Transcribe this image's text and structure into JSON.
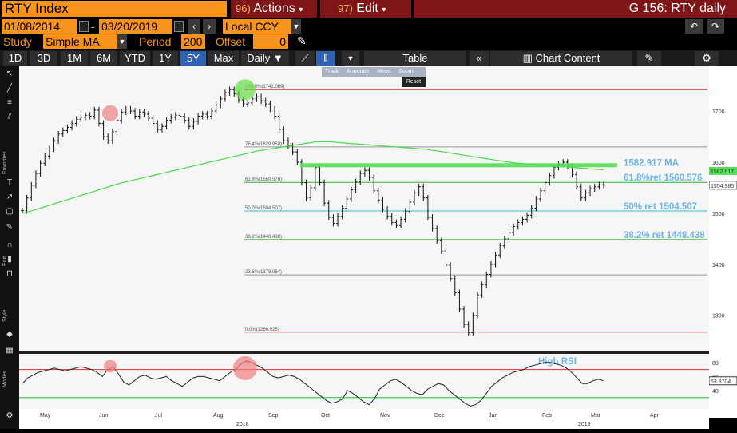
{
  "header": {
    "security": "RTY Index",
    "actions": {
      "num": "96)",
      "label": "Actions"
    },
    "edit": {
      "num": "97)",
      "label": "Edit"
    },
    "window_title": "G 156: RTY daily"
  },
  "controls": {
    "start_date": "01/08/2014",
    "dash": "-",
    "end_date": "03/20/2019",
    "currency": "Local CCY",
    "study_label": "Study",
    "study_value": "Simple MA",
    "period_label": "Period",
    "period_value": "200",
    "offset_label": "Offset",
    "offset_value": "0"
  },
  "tabs": [
    "1D",
    "3D",
    "1M",
    "6M",
    "YTD",
    "1Y",
    "5Y",
    "Max"
  ],
  "active_tab": "5Y",
  "periodicity": "Daily",
  "table_label": "Table",
  "chart_content_label": "Chart Content",
  "overlay_toolbar": {
    "items": [
      "Track",
      "Annotate",
      "News",
      "Zoom"
    ],
    "reset": "Reset"
  },
  "side_labels": {
    "favorites": "Favorites",
    "edit": "Edit",
    "style": "Style",
    "modes": "Modes"
  },
  "chart_data": {
    "type": "line",
    "title": "RTY daily",
    "price_axis": {
      "ylim": [
        1240,
        1780
      ],
      "ticks": [
        1300,
        1400,
        1500,
        1600,
        1700
      ]
    },
    "rsi_axis": {
      "ylim": [
        15,
        90
      ],
      "ticks": [
        40,
        60,
        80
      ]
    },
    "x_tick_labels": [
      "May",
      "Jun",
      "Jul",
      "Aug",
      "Sep",
      "Oct",
      "Nov",
      "Dec",
      "Jan",
      "Feb",
      "Mar",
      "Apr"
    ],
    "x_year_labels": [
      "2018",
      "2019"
    ],
    "fib_levels": [
      {
        "label": "100.0%(1742.089)",
        "value": 1742.089,
        "color": "#e03030"
      },
      {
        "label": "76.4%(1629.950)",
        "value": 1629.95,
        "color": "#999999"
      },
      {
        "label": "61.8%(1560.576)",
        "value": 1560.576,
        "color": "#22bb22"
      },
      {
        "label": "50.0%(1504.507)",
        "value": 1504.507,
        "color": "#33bbdd"
      },
      {
        "label": "38.2%(1448.438)",
        "value": 1448.438,
        "color": "#22bb22"
      },
      {
        "label": "23.6%(1379.064)",
        "value": 1379.064,
        "color": "#999999"
      },
      {
        "label": "0.0%(1266.925)",
        "value": 1266.925,
        "color": "#e03030"
      }
    ],
    "annotations": [
      "1582.917  MA",
      "61.8%ret 1560.576",
      "50% ret 1504.507",
      "38.2% ret 1448.438",
      "High RSI"
    ],
    "last_price": "1554.985",
    "ma_value": "1582.917",
    "rsi_last": "53.8704",
    "rsi_bands": {
      "upper": 70,
      "lower": 30
    },
    "series": [
      {
        "name": "RTY",
        "values": [
          1505,
          1530,
          1555,
          1578,
          1598,
          1612,
          1626,
          1642,
          1655,
          1662,
          1668,
          1676,
          1684,
          1688,
          1692,
          1690,
          1702,
          1676,
          1650,
          1642,
          1660,
          1682,
          1698,
          1704,
          1700,
          1690,
          1698,
          1694,
          1686,
          1676,
          1664,
          1670,
          1682,
          1688,
          1692,
          1690,
          1682,
          1670,
          1680,
          1690,
          1694,
          1690,
          1700,
          1712,
          1724,
          1736,
          1742,
          1734,
          1722,
          1714,
          1716,
          1724,
          1728,
          1720,
          1714,
          1704,
          1690,
          1664,
          1642,
          1632,
          1620,
          1600,
          1560,
          1530,
          1550,
          1590,
          1560,
          1520,
          1492,
          1480,
          1494,
          1510,
          1528,
          1546,
          1562,
          1578,
          1584,
          1570,
          1544,
          1526,
          1508,
          1494,
          1482,
          1476,
          1488,
          1504,
          1522,
          1540,
          1552,
          1530,
          1492,
          1470,
          1446,
          1426,
          1398,
          1372,
          1344,
          1312,
          1282,
          1266,
          1300,
          1340,
          1360,
          1380,
          1400,
          1418,
          1436,
          1450,
          1462,
          1474,
          1482,
          1488,
          1496,
          1510,
          1528,
          1544,
          1560,
          1574,
          1590,
          1596,
          1600,
          1592,
          1576,
          1552,
          1530,
          1540,
          1548,
          1552,
          1556,
          1555
        ]
      },
      {
        "name": "MA",
        "values": [
          1500,
          1503,
          1507,
          1511,
          1515,
          1519,
          1523,
          1527,
          1531,
          1535,
          1539,
          1543,
          1547,
          1551,
          1555,
          1559,
          1562,
          1565,
          1568,
          1571,
          1574,
          1577,
          1580,
          1583,
          1586,
          1589,
          1592,
          1595,
          1598,
          1601,
          1604,
          1607,
          1610,
          1613,
          1616,
          1619,
          1622,
          1624,
          1626,
          1628,
          1630,
          1632,
          1634,
          1636,
          1638,
          1640,
          1640,
          1640,
          1639,
          1638,
          1637,
          1636,
          1635,
          1634,
          1633,
          1632,
          1631,
          1630,
          1629,
          1628,
          1627,
          1626,
          1625,
          1623,
          1621,
          1619,
          1617,
          1615,
          1613,
          1611,
          1609,
          1607,
          1605,
          1603,
          1601,
          1599,
          1598,
          1597,
          1596,
          1595,
          1594,
          1593,
          1592,
          1591,
          1590,
          1589,
          1588,
          1587,
          1586,
          1585
        ]
      },
      {
        "name": "RSI",
        "values": [
          50,
          58,
          62,
          66,
          68,
          70,
          72,
          70,
          68,
          70,
          72,
          74,
          72,
          70,
          66,
          60,
          70,
          74,
          64,
          52,
          48,
          54,
          60,
          62,
          58,
          56,
          58,
          60,
          54,
          50,
          46,
          52,
          58,
          60,
          60,
          58,
          56,
          54,
          60,
          66,
          70,
          78,
          82,
          80,
          76,
          72,
          66,
          60,
          58,
          60,
          62,
          60,
          56,
          50,
          44,
          38,
          32,
          26,
          22,
          24,
          28,
          40,
          36,
          30,
          24,
          20,
          28,
          42,
          48,
          54,
          56,
          52,
          46,
          40,
          36,
          34,
          42,
          46,
          50,
          48,
          40,
          34,
          28,
          22,
          18,
          20,
          26,
          36,
          46,
          52,
          58,
          62,
          66,
          68,
          70,
          74,
          76,
          78,
          80,
          80,
          78,
          76,
          72,
          66,
          58,
          50,
          50,
          54,
          56,
          54
        ]
      }
    ]
  }
}
